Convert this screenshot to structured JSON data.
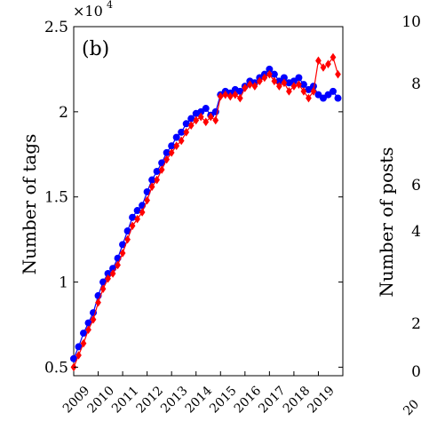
{
  "chart_data": [
    {
      "type": "line",
      "panel_label": "(b)",
      "xlabel": "",
      "ylabel": "Number of tags",
      "exponent_label": "×10",
      "exponent_power": "4",
      "x_range": [
        2009.0,
        2020.0
      ],
      "ylim": [
        0.45,
        2.5
      ],
      "yticks": [
        {
          "value": 0.5,
          "label": "0.5"
        },
        {
          "value": 1.0,
          "label": "1"
        },
        {
          "value": 1.5,
          "label": "1.5"
        },
        {
          "value": 2.0,
          "label": "2"
        },
        {
          "value": 2.5,
          "label": "2.5"
        }
      ],
      "xticks": [
        "2009",
        "2010",
        "2011",
        "2012",
        "2013",
        "2014",
        "2015",
        "2016",
        "2017",
        "2018",
        "2019"
      ],
      "grid": false,
      "series": [
        {
          "color": "#0000ff",
          "marker": "circle",
          "points": [
            [
              2009.0,
              0.55
            ],
            [
              2009.2,
              0.62
            ],
            [
              2009.4,
              0.7
            ],
            [
              2009.6,
              0.76
            ],
            [
              2009.8,
              0.82
            ],
            [
              2010.0,
              0.92
            ],
            [
              2010.2,
              1.0
            ],
            [
              2010.4,
              1.05
            ],
            [
              2010.6,
              1.08
            ],
            [
              2010.8,
              1.14
            ],
            [
              2011.0,
              1.22
            ],
            [
              2011.2,
              1.3
            ],
            [
              2011.4,
              1.38
            ],
            [
              2011.6,
              1.42
            ],
            [
              2011.8,
              1.45
            ],
            [
              2012.0,
              1.53
            ],
            [
              2012.2,
              1.6
            ],
            [
              2012.4,
              1.65
            ],
            [
              2012.6,
              1.7
            ],
            [
              2012.8,
              1.76
            ],
            [
              2013.0,
              1.8
            ],
            [
              2013.2,
              1.85
            ],
            [
              2013.4,
              1.88
            ],
            [
              2013.6,
              1.93
            ],
            [
              2013.8,
              1.96
            ],
            [
              2014.0,
              1.99
            ],
            [
              2014.2,
              2.0
            ],
            [
              2014.4,
              2.02
            ],
            [
              2014.6,
              1.98
            ],
            [
              2014.8,
              2.0
            ],
            [
              2015.0,
              2.1
            ],
            [
              2015.2,
              2.12
            ],
            [
              2015.4,
              2.11
            ],
            [
              2015.6,
              2.13
            ],
            [
              2015.8,
              2.12
            ],
            [
              2016.0,
              2.15
            ],
            [
              2016.2,
              2.18
            ],
            [
              2016.4,
              2.17
            ],
            [
              2016.6,
              2.2
            ],
            [
              2016.8,
              2.22
            ],
            [
              2017.0,
              2.25
            ],
            [
              2017.2,
              2.22
            ],
            [
              2017.4,
              2.18
            ],
            [
              2017.6,
              2.2
            ],
            [
              2017.8,
              2.17
            ],
            [
              2018.0,
              2.18
            ],
            [
              2018.2,
              2.2
            ],
            [
              2018.4,
              2.16
            ],
            [
              2018.6,
              2.13
            ],
            [
              2018.8,
              2.15
            ],
            [
              2019.0,
              2.1
            ],
            [
              2019.2,
              2.08
            ],
            [
              2019.4,
              2.1
            ],
            [
              2019.6,
              2.12
            ],
            [
              2019.8,
              2.08
            ]
          ]
        },
        {
          "color": "#ff0000",
          "marker": "diamond",
          "points": [
            [
              2009.0,
              0.5
            ],
            [
              2009.2,
              0.57
            ],
            [
              2009.4,
              0.64
            ],
            [
              2009.6,
              0.72
            ],
            [
              2009.8,
              0.78
            ],
            [
              2010.0,
              0.88
            ],
            [
              2010.2,
              0.96
            ],
            [
              2010.4,
              1.02
            ],
            [
              2010.6,
              1.05
            ],
            [
              2010.8,
              1.1
            ],
            [
              2011.0,
              1.17
            ],
            [
              2011.2,
              1.25
            ],
            [
              2011.4,
              1.33
            ],
            [
              2011.6,
              1.37
            ],
            [
              2011.8,
              1.41
            ],
            [
              2012.0,
              1.48
            ],
            [
              2012.2,
              1.56
            ],
            [
              2012.4,
              1.6
            ],
            [
              2012.6,
              1.66
            ],
            [
              2012.8,
              1.72
            ],
            [
              2013.0,
              1.76
            ],
            [
              2013.2,
              1.8
            ],
            [
              2013.4,
              1.83
            ],
            [
              2013.6,
              1.88
            ],
            [
              2013.8,
              1.92
            ],
            [
              2014.0,
              1.95
            ],
            [
              2014.2,
              1.97
            ],
            [
              2014.4,
              1.94
            ],
            [
              2014.6,
              1.97
            ],
            [
              2014.8,
              1.95
            ],
            [
              2015.0,
              2.09
            ],
            [
              2015.2,
              2.1
            ],
            [
              2015.4,
              2.09
            ],
            [
              2015.6,
              2.1
            ],
            [
              2015.8,
              2.08
            ],
            [
              2016.0,
              2.14
            ],
            [
              2016.2,
              2.16
            ],
            [
              2016.4,
              2.15
            ],
            [
              2016.6,
              2.18
            ],
            [
              2016.8,
              2.2
            ],
            [
              2017.0,
              2.22
            ],
            [
              2017.2,
              2.18
            ],
            [
              2017.4,
              2.15
            ],
            [
              2017.6,
              2.17
            ],
            [
              2017.8,
              2.12
            ],
            [
              2018.0,
              2.15
            ],
            [
              2018.2,
              2.16
            ],
            [
              2018.4,
              2.12
            ],
            [
              2018.6,
              2.08
            ],
            [
              2018.8,
              2.12
            ],
            [
              2019.0,
              2.3
            ],
            [
              2019.2,
              2.26
            ],
            [
              2019.4,
              2.28
            ],
            [
              2019.6,
              2.32
            ],
            [
              2019.8,
              2.22
            ]
          ]
        }
      ]
    },
    {
      "type": "line",
      "ylabel": "Number of posts",
      "yticks_visible": [
        "10",
        "8",
        "6",
        "4",
        "2",
        "0"
      ],
      "xticks_visible": [
        "20"
      ]
    }
  ]
}
